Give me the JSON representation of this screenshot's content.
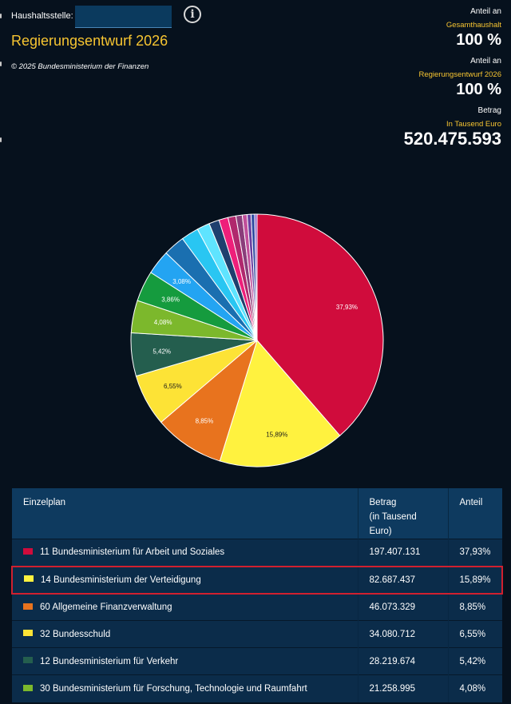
{
  "header": {
    "haushaltsstelle_label": "Haushaltsstelle:",
    "haushaltsstelle_value": "",
    "info_icon": "info-icon",
    "title": "Regierungsentwurf 2026",
    "copyright": "© 2025 Bundesministerium der Finanzen"
  },
  "stats": {
    "anteil_gesamt_label": "Anteil an",
    "anteil_gesamt_sub": "Gesamthaushalt",
    "anteil_gesamt_value": "100 %",
    "anteil_entwurf_label": "Anteil an",
    "anteil_entwurf_sub": "Regierungsentwurf 2026",
    "anteil_entwurf_value": "100 %",
    "betrag_label": "Betrag",
    "betrag_sub": "In Tausend Euro",
    "betrag_value": "520.475.593"
  },
  "chart_data": {
    "type": "pie",
    "slices": [
      {
        "value": 37.93,
        "label": "37,93%",
        "color": "#d00c3c"
      },
      {
        "value": 15.89,
        "label": "15,89%",
        "color": "#fff23f"
      },
      {
        "value": 8.85,
        "label": "8,85%",
        "color": "#e8731e"
      },
      {
        "value": 6.55,
        "label": "6,55%",
        "color": "#fde336"
      },
      {
        "value": 5.42,
        "label": "5,42%",
        "color": "#245e4e"
      },
      {
        "value": 4.08,
        "label": "4,08%",
        "color": "#7cb82c"
      },
      {
        "value": 3.86,
        "label": "3,86%",
        "color": "#159b3e"
      },
      {
        "value": 3.08,
        "label": "3,08%",
        "color": "#23a4f2"
      },
      {
        "value": 2.7,
        "label": "",
        "color": "#1a6fb0"
      },
      {
        "value": 2.2,
        "label": "",
        "color": "#29c6f2"
      },
      {
        "value": 1.6,
        "label": "",
        "color": "#5fe4ff"
      },
      {
        "value": 1.3,
        "label": "",
        "color": "#1e3f6e"
      },
      {
        "value": 1.15,
        "label": "",
        "color": "#ee1f7a"
      },
      {
        "value": 1.0,
        "label": "",
        "color": "#b0286d"
      },
      {
        "value": 0.8,
        "label": "",
        "color": "#8a3d7a"
      },
      {
        "value": 0.6,
        "label": "",
        "color": "#c04f9a"
      },
      {
        "value": 0.5,
        "label": "",
        "color": "#6a3fa0"
      },
      {
        "value": 0.45,
        "label": "",
        "color": "#2f4aa0"
      },
      {
        "value": 0.3,
        "label": "",
        "color": "#8a5fc8"
      }
    ]
  },
  "table": {
    "headers": {
      "einzelplan": "Einzelplan",
      "betrag_line1": "Betrag",
      "betrag_line2": "(in Tausend",
      "betrag_line3": "Euro)",
      "anteil": "Anteil"
    },
    "rows": [
      {
        "color": "#d00c3c",
        "name": "11 Bundesministerium für Arbeit und Soziales",
        "betrag": "197.407.131",
        "anteil": "37,93%"
      },
      {
        "color": "#fff23f",
        "name": "14 Bundesministerium der Verteidigung",
        "betrag": "82.687.437",
        "anteil": "15,89%"
      },
      {
        "color": "#e8731e",
        "name": "60 Allgemeine Finanzverwaltung",
        "betrag": "46.073.329",
        "anteil": "8,85%"
      },
      {
        "color": "#fde336",
        "name": "32 Bundesschuld",
        "betrag": "34.080.712",
        "anteil": "6,55%"
      },
      {
        "color": "#245e4e",
        "name": "12 Bundesministerium für Verkehr",
        "betrag": "28.219.674",
        "anteil": "5,42%"
      },
      {
        "color": "#7cb82c",
        "name": "30 Bundesministerium für Forschung, Technologie und Raumfahrt",
        "betrag": "21.258.995",
        "anteil": "4,08%"
      }
    ]
  }
}
